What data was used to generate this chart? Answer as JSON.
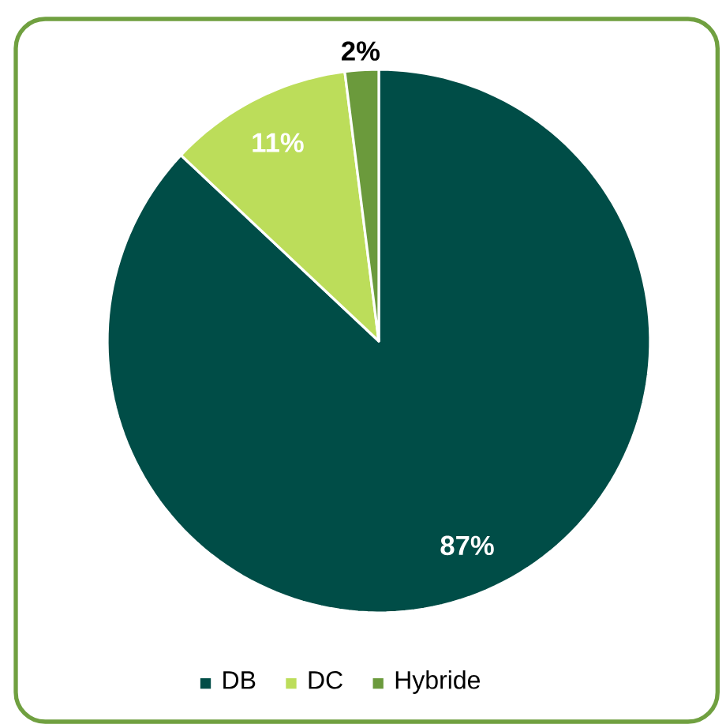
{
  "chart_data": {
    "type": "pie",
    "categories": [
      "DB",
      "DC",
      "Hybride"
    ],
    "values": [
      87,
      11,
      2
    ],
    "colors": [
      "#004d47",
      "#bcdd5a",
      "#6b9a3c"
    ],
    "value_labels": [
      "87%",
      "11%",
      "2%"
    ],
    "legend": "bottom"
  }
}
